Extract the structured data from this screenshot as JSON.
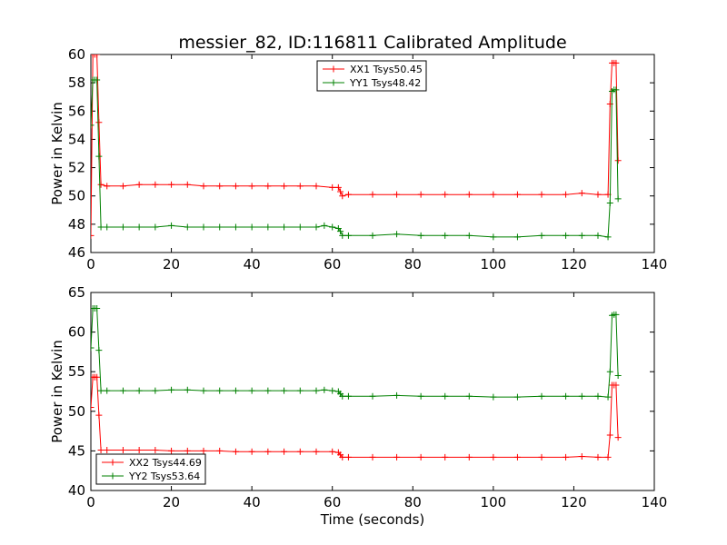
{
  "colors": {
    "red": "#ff0000",
    "green": "#008000",
    "axis": "#000000",
    "background": "#ffffff"
  },
  "chart_data": [
    {
      "type": "line",
      "title": "messier_82, ID:116811 Calibrated Amplitude",
      "xlabel": "",
      "ylabel": "Power in Kelvin",
      "xlim": [
        0,
        140
      ],
      "ylim": [
        46,
        60
      ],
      "xticks": [
        "0",
        "20",
        "40",
        "60",
        "80",
        "100",
        "120",
        "140"
      ],
      "yticks": [
        "46",
        "48",
        "50",
        "52",
        "54",
        "56",
        "58",
        "60"
      ],
      "grid": false,
      "legend_position": "top-center",
      "series": [
        {
          "name": "XX1 Tsys50.45",
          "color": "#ff0000",
          "marker": "+",
          "x": [
            0,
            0.5,
            1,
            1.5,
            2,
            2.5,
            4,
            8,
            12,
            16,
            20,
            24,
            28,
            32,
            36,
            40,
            44,
            48,
            52,
            56,
            60,
            61.5,
            62,
            62.5,
            64,
            70,
            76,
            82,
            88,
            94,
            100,
            106,
            112,
            118,
            122,
            126,
            128.5,
            129,
            129.5,
            130,
            130.5,
            131
          ],
          "values": [
            47.2,
            60,
            60,
            60,
            55.2,
            50.8,
            50.7,
            50.7,
            50.8,
            50.8,
            50.8,
            50.8,
            50.7,
            50.7,
            50.7,
            50.7,
            50.7,
            50.7,
            50.7,
            50.7,
            50.6,
            50.6,
            50.3,
            50.0,
            50.1,
            50.1,
            50.1,
            50.1,
            50.1,
            50.1,
            50.1,
            50.1,
            50.1,
            50.1,
            50.2,
            50.1,
            50.1,
            56.5,
            59.4,
            59.4,
            59.4,
            52.5
          ]
        },
        {
          "name": "YY1 Tsys48.42",
          "color": "#008000",
          "marker": "+",
          "x": [
            0,
            0.5,
            1,
            1.5,
            2,
            2.5,
            4,
            8,
            12,
            16,
            20,
            24,
            28,
            32,
            36,
            40,
            44,
            48,
            52,
            56,
            58,
            60,
            61.5,
            62,
            62.5,
            64,
            70,
            76,
            82,
            88,
            94,
            100,
            106,
            112,
            118,
            122,
            126,
            128.5,
            129,
            129.5,
            130,
            130.5,
            131
          ],
          "values": [
            55.0,
            58.2,
            58.2,
            58.2,
            52.8,
            47.8,
            47.8,
            47.8,
            47.8,
            47.8,
            47.9,
            47.8,
            47.8,
            47.8,
            47.8,
            47.8,
            47.8,
            47.8,
            47.8,
            47.8,
            47.9,
            47.8,
            47.7,
            47.5,
            47.2,
            47.2,
            47.2,
            47.3,
            47.2,
            47.2,
            47.2,
            47.1,
            47.1,
            47.2,
            47.2,
            47.2,
            47.2,
            47.1,
            49.5,
            57.4,
            57.5,
            57.5,
            49.8
          ]
        }
      ]
    },
    {
      "type": "line",
      "title": "",
      "xlabel": "Time (seconds)",
      "ylabel": "Power in Kelvin",
      "xlim": [
        0,
        140
      ],
      "ylim": [
        40,
        65
      ],
      "xticks": [
        "0",
        "20",
        "40",
        "60",
        "80",
        "100",
        "120",
        "140"
      ],
      "yticks": [
        "40",
        "45",
        "50",
        "55",
        "60",
        "65"
      ],
      "grid": false,
      "legend_position": "bottom-left",
      "series": [
        {
          "name": "XX2 Tsys44.69",
          "color": "#ff0000",
          "marker": "+",
          "x": [
            0,
            0.5,
            1,
            1.5,
            2,
            2.5,
            4,
            8,
            12,
            16,
            20,
            24,
            28,
            32,
            36,
            40,
            44,
            48,
            52,
            56,
            60,
            61.5,
            62,
            62.5,
            64,
            70,
            76,
            82,
            88,
            94,
            100,
            106,
            112,
            118,
            122,
            126,
            128.5,
            129,
            129.5,
            130,
            130.5,
            131
          ],
          "values": [
            50.5,
            54.3,
            54.3,
            54.3,
            49.5,
            45.1,
            45.1,
            45.1,
            45.1,
            45.1,
            45.0,
            45.0,
            45.0,
            45.0,
            44.9,
            44.9,
            44.9,
            44.9,
            44.9,
            44.9,
            44.9,
            44.8,
            44.5,
            44.2,
            44.2,
            44.2,
            44.2,
            44.2,
            44.2,
            44.2,
            44.2,
            44.2,
            44.2,
            44.2,
            44.3,
            44.2,
            44.2,
            47.0,
            53.3,
            53.3,
            53.3,
            46.7
          ]
        },
        {
          "name": "YY2 Tsys53.64",
          "color": "#008000",
          "marker": "+",
          "x": [
            0,
            0.5,
            1,
            1.5,
            2,
            2.5,
            4,
            8,
            12,
            16,
            20,
            24,
            28,
            32,
            36,
            40,
            44,
            48,
            52,
            56,
            58,
            60,
            61.5,
            62,
            62.5,
            64,
            70,
            76,
            82,
            88,
            94,
            100,
            106,
            112,
            118,
            122,
            126,
            128.5,
            129,
            129.5,
            130,
            130.5,
            131
          ],
          "values": [
            58.0,
            63.0,
            63.0,
            63.0,
            57.7,
            52.6,
            52.6,
            52.6,
            52.6,
            52.6,
            52.7,
            52.7,
            52.6,
            52.6,
            52.6,
            52.6,
            52.6,
            52.6,
            52.6,
            52.6,
            52.7,
            52.6,
            52.5,
            52.2,
            51.9,
            51.9,
            51.9,
            52.0,
            51.9,
            51.9,
            51.9,
            51.8,
            51.8,
            51.9,
            51.9,
            51.9,
            51.9,
            51.8,
            55.0,
            62.1,
            62.2,
            62.2,
            54.5
          ]
        }
      ]
    }
  ]
}
